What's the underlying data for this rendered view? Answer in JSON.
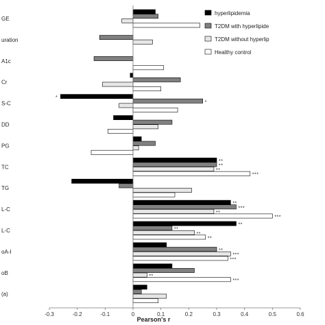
{
  "chart_data": {
    "type": "bar",
    "orientation": "horizontal",
    "xlabel": "Pearson's r",
    "xlim": [
      -0.3,
      0.6
    ],
    "xticks": [
      "-0.3",
      "-0.2",
      "-0.1",
      "0",
      "0.1",
      "0.2",
      "0.3",
      "0.4",
      "0.5",
      "0.6"
    ],
    "categories": [
      "GE",
      "uration",
      "A1c",
      "Cr",
      "S-C",
      "DD",
      "PG",
      "TC",
      "TG",
      "L-C",
      "L-C",
      "oA-I",
      "oB",
      "(a)"
    ],
    "series": [
      {
        "name": "hyperlipidemia",
        "color": "#000000",
        "values": [
          0.08,
          0.0,
          0.0,
          -0.01,
          -0.26,
          -0.07,
          0.03,
          0.3,
          -0.22,
          0.35,
          0.37,
          0.12,
          0.14,
          0.05
        ]
      },
      {
        "name": "T2DM with hyperlipidemia",
        "color": "#808080",
        "values": [
          0.09,
          -0.12,
          -0.14,
          0.17,
          0.25,
          0.14,
          0.08,
          0.3,
          -0.05,
          0.37,
          0.14,
          0.3,
          0.22,
          0.03
        ]
      },
      {
        "name": "T2DM without hyperlipidemia",
        "color": "#e6e6e6",
        "values": [
          -0.04,
          0.07,
          0.0,
          -0.11,
          -0.05,
          0.09,
          0.02,
          0.29,
          0.21,
          0.29,
          0.22,
          0.35,
          0.05,
          0.12
        ]
      },
      {
        "name": "Healthy control",
        "color": "#ffffff",
        "values": [
          0.24,
          0.0,
          0.11,
          0.1,
          0.16,
          -0.09,
          -0.15,
          0.42,
          0.15,
          0.5,
          0.26,
          0.34,
          0.35,
          0.09
        ]
      }
    ],
    "annotations": [
      {
        "category": 4,
        "series": 0,
        "text": "*"
      },
      {
        "category": 4,
        "series": 1,
        "text": "*"
      },
      {
        "category": 7,
        "series": 0,
        "text": "**"
      },
      {
        "category": 7,
        "series": 1,
        "text": "**"
      },
      {
        "category": 7,
        "series": 2,
        "text": "**"
      },
      {
        "category": 7,
        "series": 3,
        "text": "***"
      },
      {
        "category": 9,
        "series": 0,
        "text": "**"
      },
      {
        "category": 9,
        "series": 1,
        "text": "***"
      },
      {
        "category": 9,
        "series": 2,
        "text": "**"
      },
      {
        "category": 9,
        "series": 3,
        "text": "***"
      },
      {
        "category": 10,
        "series": 0,
        "text": "**"
      },
      {
        "category": 10,
        "series": 1,
        "text": "**"
      },
      {
        "category": 10,
        "series": 2,
        "text": "**"
      },
      {
        "category": 10,
        "series": 3,
        "text": "**"
      },
      {
        "category": 11,
        "series": 1,
        "text": "**"
      },
      {
        "category": 11,
        "series": 2,
        "text": "***"
      },
      {
        "category": 11,
        "series": 3,
        "text": "***"
      },
      {
        "category": 12,
        "series": 2,
        "text": "**"
      },
      {
        "category": 12,
        "series": 3,
        "text": "***"
      }
    ],
    "legend": {
      "placement": "top-right",
      "entries": [
        "hyperlipidemia",
        "T2DM with hyperlipide",
        "T2DM without hyperlip",
        "Healthy control"
      ]
    },
    "grid": false
  }
}
